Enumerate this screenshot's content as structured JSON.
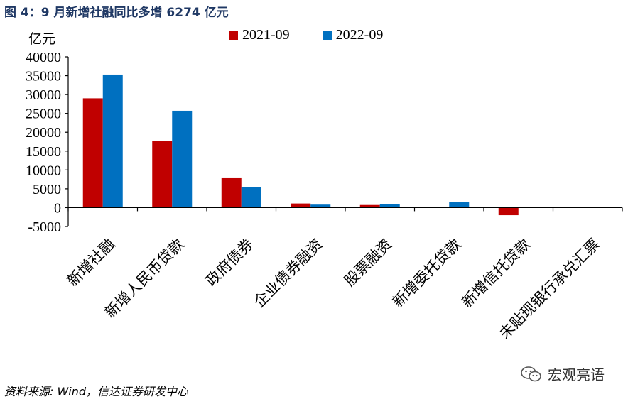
{
  "figure": {
    "title": "图 4：9 月新增社融同比多增 6274 亿元",
    "source": "资料来源: Wind，信达证券研发中心",
    "watermark": "宏观亮语",
    "watermark_icon": "wechat-icon"
  },
  "chart_data": {
    "type": "bar",
    "title": "",
    "xlabel": "",
    "ylabel": "亿元",
    "ylim": [
      -5000,
      40000
    ],
    "yticks": [
      -5000,
      0,
      5000,
      10000,
      15000,
      20000,
      25000,
      30000,
      35000,
      40000
    ],
    "grid": false,
    "legend_position": "top",
    "categories": [
      "新增社融",
      "新增人民币贷款",
      "政府债券",
      "企业债券融资",
      "股票融资",
      "新增委托贷款",
      "新增信托贷款",
      "未贴现银行承兑汇票"
    ],
    "series": [
      {
        "name": "2021-09",
        "color": "#c00000",
        "values": [
          29000,
          17700,
          8000,
          1100,
          700,
          0,
          -2000,
          0
        ]
      },
      {
        "name": "2022-09",
        "color": "#0070c0",
        "values": [
          35300,
          25700,
          5500,
          800,
          950,
          1400,
          0,
          0
        ]
      }
    ]
  }
}
